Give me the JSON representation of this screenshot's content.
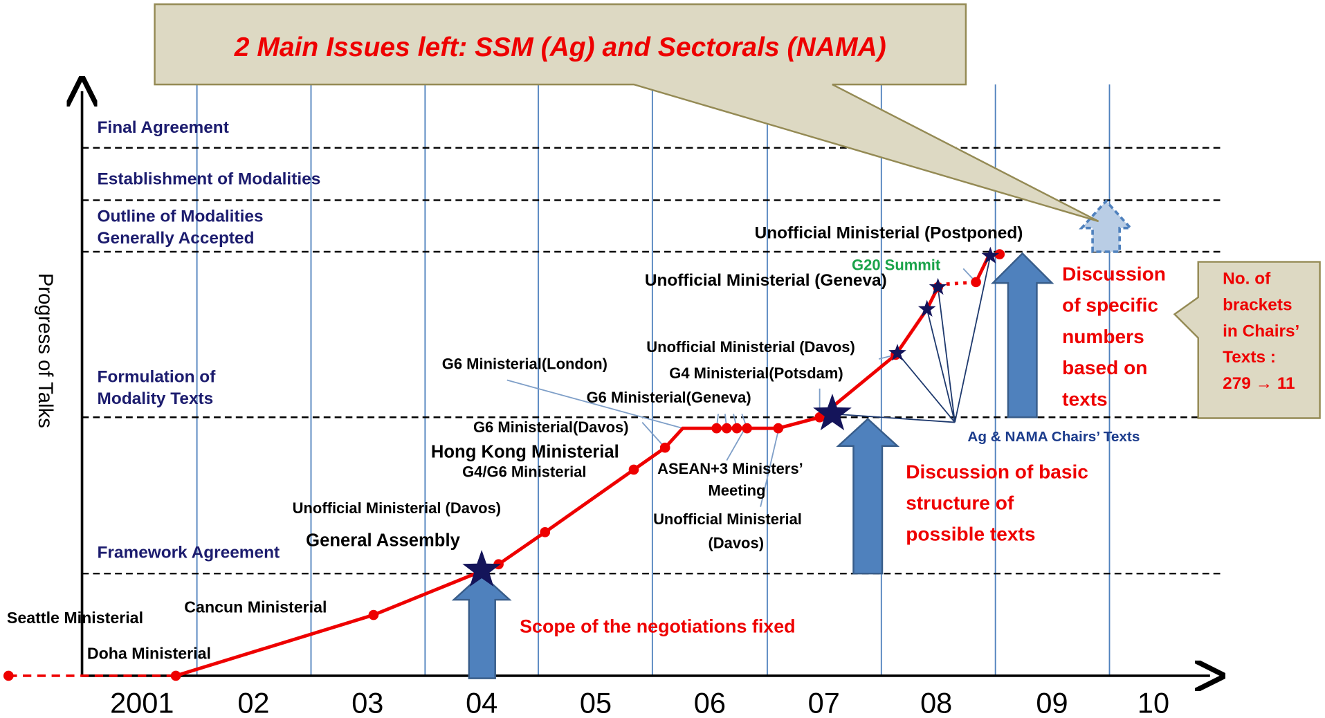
{
  "callout": "2 Main Issues left:  SSM (Ag) and Sectorals (NAMA)",
  "y_axis_label": "Progress of Talks",
  "stages": [
    [
      "Final Agreement"
    ],
    [
      "Establishment of Modalities"
    ],
    [
      "Outline of Modalities",
      "Generally Accepted"
    ],
    [
      "Formulation of",
      "Modality Texts"
    ],
    [
      "Framework Agreement"
    ]
  ],
  "years": [
    "2001",
    "02",
    "03",
    "04",
    "05",
    "06",
    "07",
    "08",
    "09",
    "10"
  ],
  "events": [
    [
      "Seattle Ministerial"
    ],
    [
      "Doha Ministerial"
    ],
    [
      "Cancun Ministerial"
    ],
    [
      "General Assembly"
    ],
    [
      "Unofficial Ministerial (Davos)"
    ],
    [
      "Hong Kong Ministerial"
    ],
    [
      "G4/G6 Ministerial"
    ],
    [
      "G6 Ministerial(Davos)"
    ],
    [
      "G6 Ministerial(London)"
    ],
    [
      "G6 Ministerial(Geneva)"
    ],
    [
      "Unofficial Ministerial (Davos)"
    ],
    [
      "G4 Ministerial(Potsdam)"
    ],
    [
      "ASEAN+3 Ministers’",
      "Meeting"
    ],
    [
      "Unofficial Ministerial",
      "(Davos)"
    ],
    [
      "Unofficial Ministerial (Geneva)"
    ],
    [
      "Unofficial Ministerial (Postponed)"
    ],
    [
      "G20 Summit"
    ],
    [
      "Ag & NAMA Chairs’ Texts"
    ]
  ],
  "annotations": [
    [
      "Scope of the negotiations fixed"
    ],
    [
      "Discussion of basic",
      "structure of",
      "possible texts"
    ],
    [
      "Discussion",
      "of specific",
      "numbers",
      "based on",
      "texts"
    ],
    [
      "No. of",
      "brackets",
      "in Chairs’",
      "Texts :",
      "279 → 11"
    ]
  ]
}
